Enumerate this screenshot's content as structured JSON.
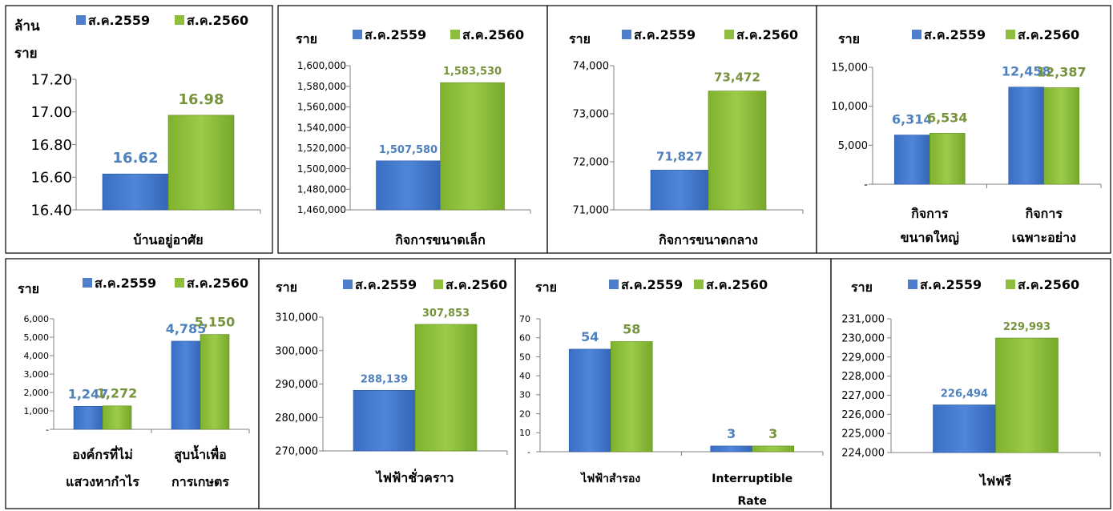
{
  "colors": {
    "s2559": "#4f7fcc",
    "s2559_edge": "#2a57a8",
    "s2560": "#8fbe3c",
    "s2560_edge": "#5f8a1e",
    "label_2559": "#4f81bd",
    "label_2560": "#77933c"
  },
  "legend": [
    "ส.ค.2559",
    "ส.ค.2560"
  ],
  "chart_data": [
    {
      "type": "bar",
      "ylabel_lines": [
        "ล้าน",
        "ราย"
      ],
      "ylim": [
        16.4,
        17.2
      ],
      "yticks": [
        "16.40",
        "16.60",
        "16.80",
        "17.00",
        "17.20"
      ],
      "categories": [
        [
          "บ้านอยู่อาศัย"
        ]
      ],
      "series": [
        {
          "name": "ส.ค.2559",
          "values": [
            16.62
          ],
          "labels": [
            "16.62"
          ]
        },
        {
          "name": "ส.ค.2560",
          "values": [
            16.98
          ],
          "labels": [
            "16.98"
          ]
        }
      ]
    },
    {
      "type": "bar",
      "ylabel_lines": [
        "ราย"
      ],
      "ylim": [
        1460000,
        1600000
      ],
      "yticks": [
        "1,460,000",
        "1,480,000",
        "1,500,000",
        "1,520,000",
        "1,540,000",
        "1,560,000",
        "1,580,000",
        "1,600,000"
      ],
      "categories": [
        [
          "กิจการขนาดเล็ก"
        ]
      ],
      "series": [
        {
          "name": "ส.ค.2559",
          "values": [
            1507580
          ],
          "labels": [
            "1,507,580"
          ]
        },
        {
          "name": "ส.ค.2560",
          "values": [
            1583530
          ],
          "labels": [
            "1,583,530"
          ]
        }
      ]
    },
    {
      "type": "bar",
      "ylabel_lines": [
        "ราย"
      ],
      "ylim": [
        71000,
        74000
      ],
      "yticks": [
        "71,000",
        "72,000",
        "73,000",
        "74,000"
      ],
      "categories": [
        [
          "กิจการขนาดกลาง"
        ]
      ],
      "series": [
        {
          "name": "ส.ค.2559",
          "values": [
            71827
          ],
          "labels": [
            "71,827"
          ]
        },
        {
          "name": "ส.ค.2560",
          "values": [
            73472
          ],
          "labels": [
            "73,472"
          ]
        }
      ]
    },
    {
      "type": "bar",
      "ylabel_lines": [
        "ราย"
      ],
      "ylim": [
        0,
        15000
      ],
      "yticks": [
        "-",
        "5,000",
        "10,000",
        "15,000"
      ],
      "categories": [
        [
          "กิจการ",
          "ขนาดใหญ่"
        ],
        [
          "กิจการ",
          "เฉพาะอย่าง"
        ]
      ],
      "series": [
        {
          "name": "ส.ค.2559",
          "values": [
            6314,
            12458
          ],
          "labels": [
            "6,314",
            "12,458"
          ]
        },
        {
          "name": "ส.ค.2560",
          "values": [
            6534,
            12387
          ],
          "labels": [
            "6,534",
            "12,387"
          ]
        }
      ]
    },
    {
      "type": "bar",
      "ylabel_lines": [
        "ราย"
      ],
      "ylim": [
        0,
        6000
      ],
      "yticks": [
        "-",
        "1,000",
        "2,000",
        "3,000",
        "4,000",
        "5,000",
        "6,000"
      ],
      "categories": [
        [
          "องค์กรที่ไม่",
          "แสวงหากำไร"
        ],
        [
          "สูบน้ำเพื่อ",
          "การเกษตร"
        ]
      ],
      "series": [
        {
          "name": "ส.ค.2559",
          "values": [
            1247,
            4785
          ],
          "labels": [
            "1,247",
            "4,785"
          ]
        },
        {
          "name": "ส.ค.2560",
          "values": [
            1272,
            5150
          ],
          "labels": [
            "1,272",
            "5,150"
          ]
        }
      ]
    },
    {
      "type": "bar",
      "ylabel_lines": [
        "ราย"
      ],
      "ylim": [
        270000,
        310000
      ],
      "yticks": [
        "270,000",
        "280,000",
        "290,000",
        "300,000",
        "310,000"
      ],
      "categories": [
        [
          "ไฟฟ้าชั่วคราว"
        ]
      ],
      "series": [
        {
          "name": "ส.ค.2559",
          "values": [
            288139
          ],
          "labels": [
            "288,139"
          ]
        },
        {
          "name": "ส.ค.2560",
          "values": [
            307853
          ],
          "labels": [
            "307,853"
          ]
        }
      ]
    },
    {
      "type": "bar",
      "ylabel_lines": [
        "ราย"
      ],
      "ylim": [
        0,
        70
      ],
      "yticks": [
        "-",
        "10",
        "20",
        "30",
        "40",
        "50",
        "60",
        "70"
      ],
      "categories": [
        [
          "ไฟฟ้าสำรอง"
        ],
        [
          "Interruptible",
          "Rate"
        ]
      ],
      "series": [
        {
          "name": "ส.ค.2559",
          "values": [
            54,
            3
          ],
          "labels": [
            "54",
            "3"
          ]
        },
        {
          "name": "ส.ค.2560",
          "values": [
            58,
            3
          ],
          "labels": [
            "58",
            "3"
          ]
        }
      ]
    },
    {
      "type": "bar",
      "ylabel_lines": [
        "ราย"
      ],
      "ylim": [
        224000,
        231000
      ],
      "yticks": [
        "224,000",
        "225,000",
        "226,000",
        "227,000",
        "228,000",
        "229,000",
        "230,000",
        "231,000"
      ],
      "categories": [
        [
          "ไฟฟรี"
        ]
      ],
      "series": [
        {
          "name": "ส.ค.2559",
          "values": [
            226494
          ],
          "labels": [
            "226,494"
          ]
        },
        {
          "name": "ส.ค.2560",
          "values": [
            229993
          ],
          "labels": [
            "229,993"
          ]
        }
      ]
    }
  ]
}
